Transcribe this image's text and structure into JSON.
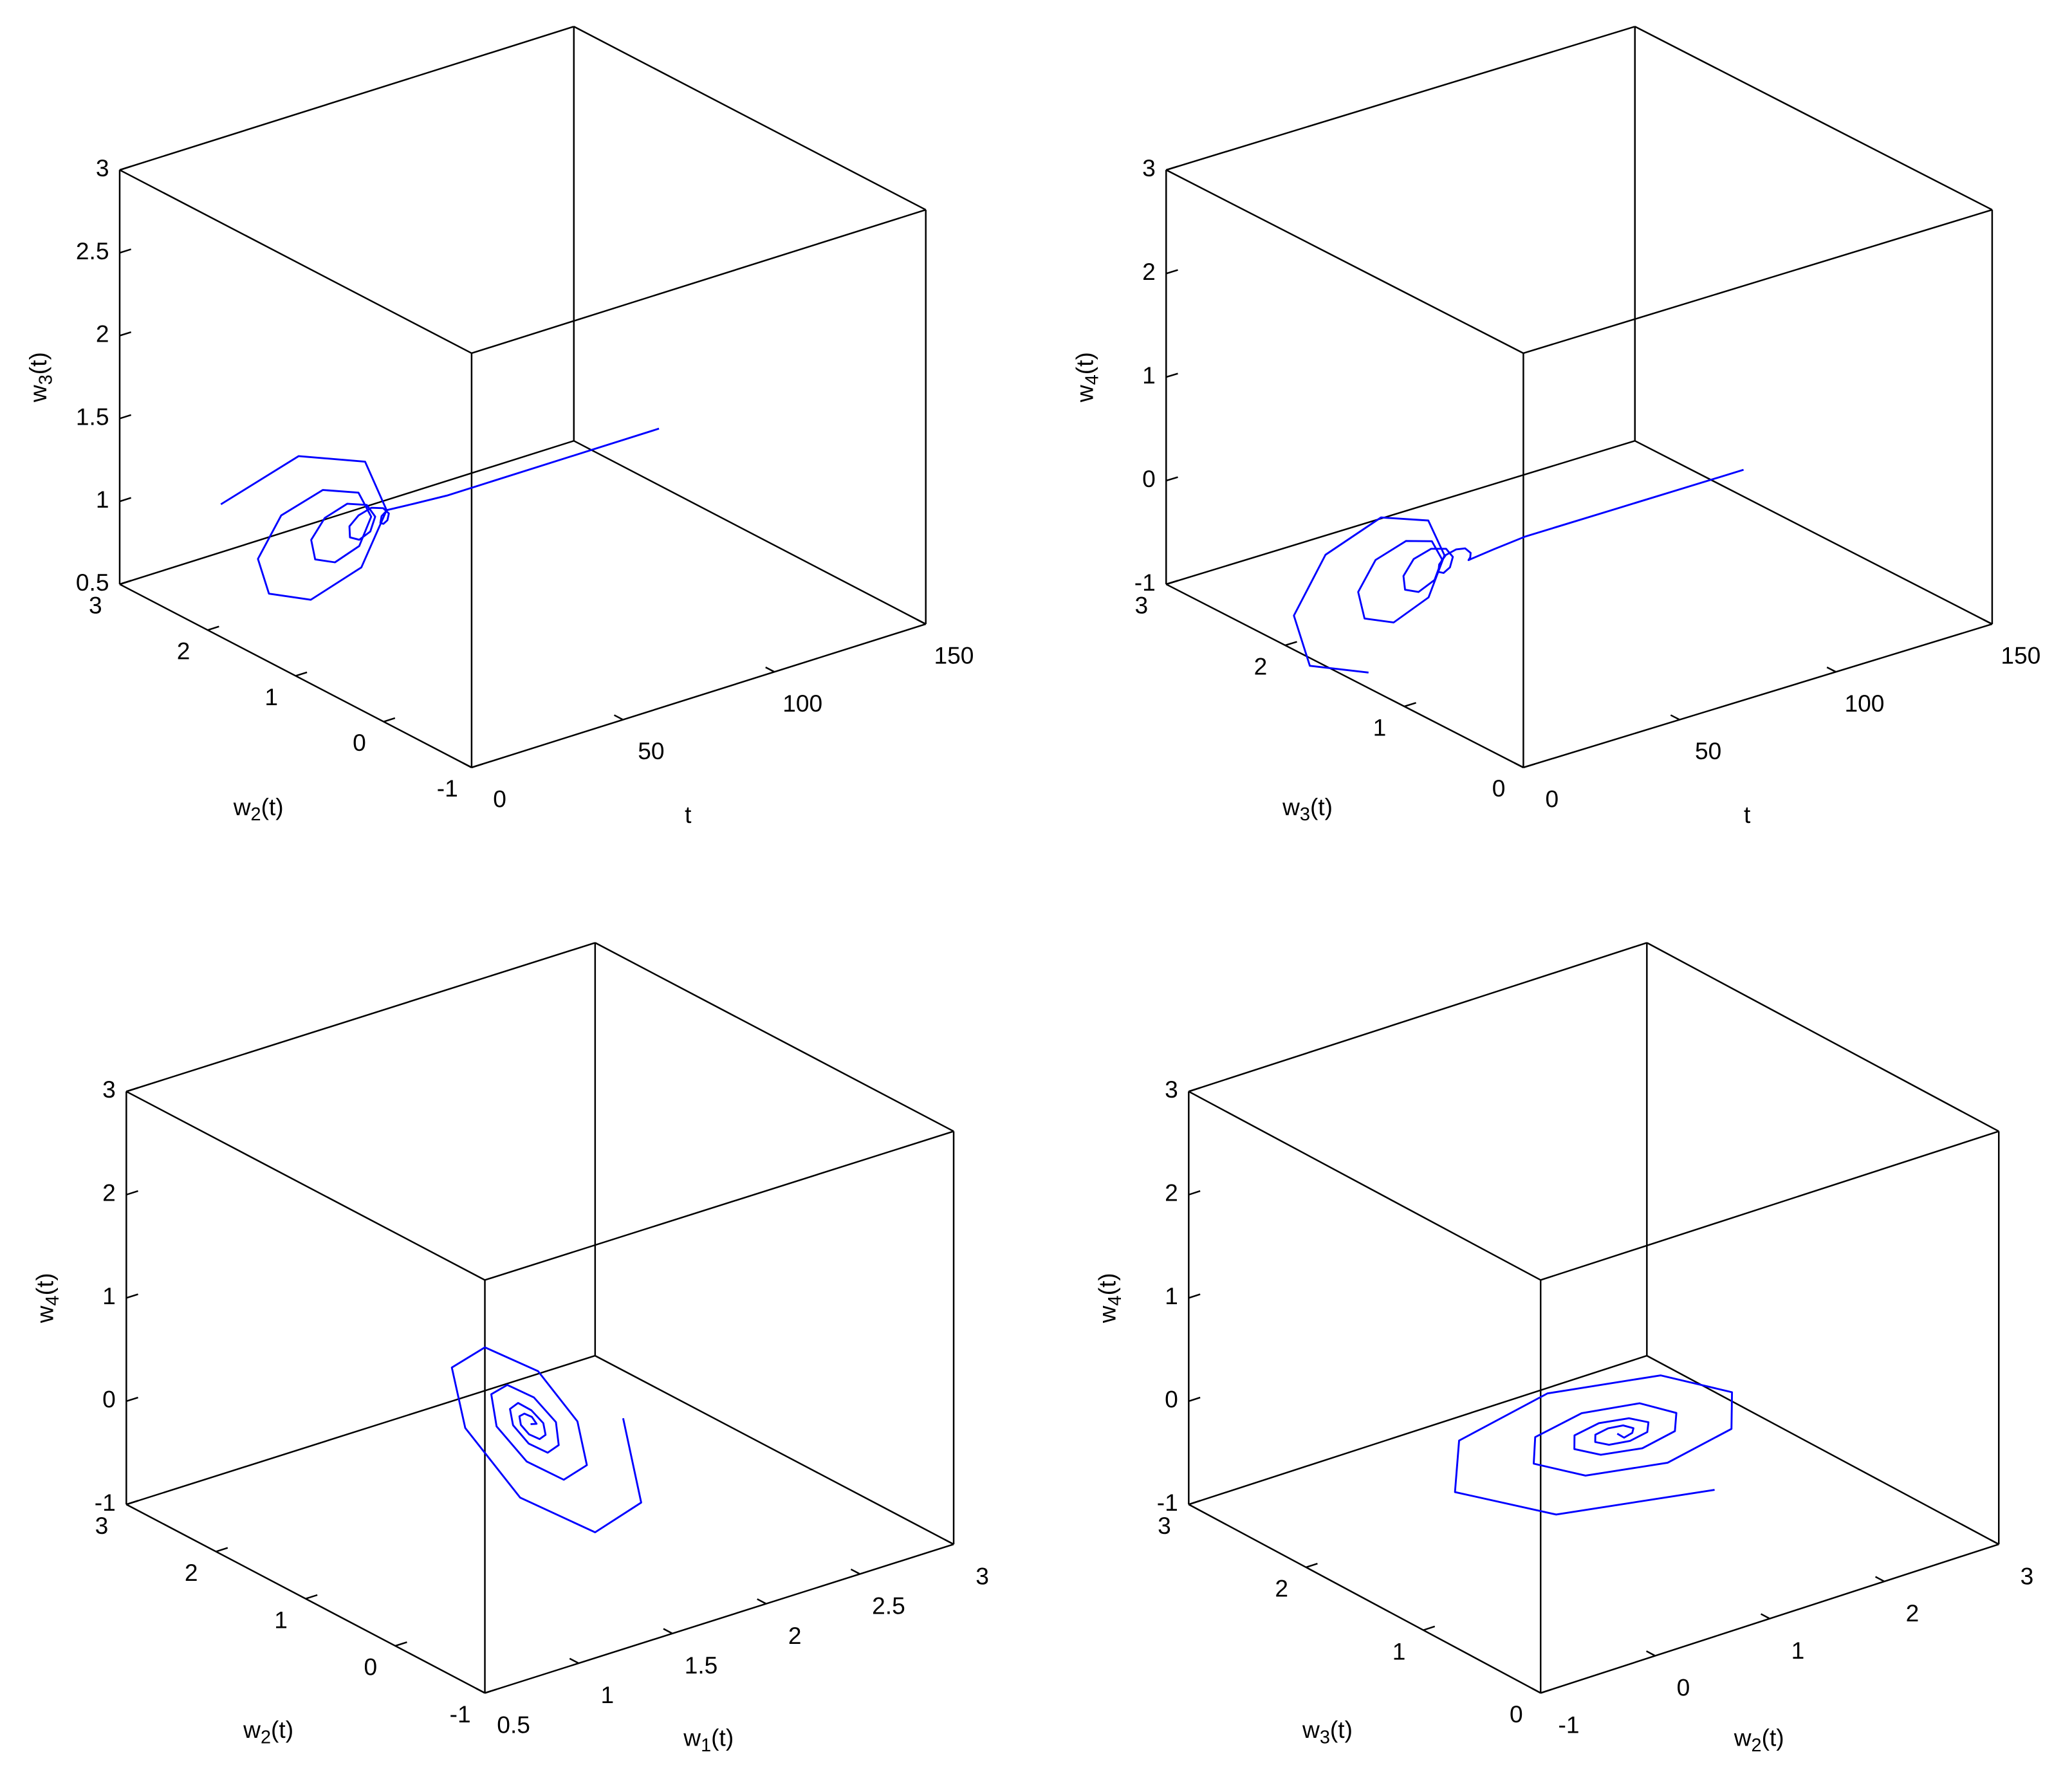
{
  "chart_data": [
    {
      "type": "line3d",
      "xlabel": "t",
      "ylabel": "w2(t)",
      "zlabel": "w3(t)",
      "xlim": [
        0,
        150
      ],
      "ylim": [
        -1,
        3
      ],
      "zlim": [
        0.5,
        3
      ],
      "xticks": [
        0,
        50,
        100,
        150
      ],
      "yticks": [
        -1,
        0,
        1,
        2,
        3
      ],
      "zticks": [
        0.5,
        1,
        1.5,
        2,
        2.5,
        3
      ],
      "series": [
        {
          "color": "#0000ff",
          "x": [
            0,
            1,
            2,
            3,
            4,
            5,
            6,
            7,
            8,
            9,
            10,
            11,
            12,
            13,
            14,
            15,
            16,
            17,
            18,
            19,
            20,
            21,
            22,
            23,
            24,
            25,
            26,
            27,
            28,
            29,
            30,
            31,
            32,
            40,
            50,
            60,
            80,
            100,
            120
          ],
          "y": [
            1.85,
            1,
            0.28,
            0.07,
            0.39,
            1,
            1.51,
            1.67,
            1.44,
            1,
            0.63,
            0.52,
            0.69,
            1,
            1.26,
            1.34,
            1.22,
            1,
            0.81,
            0.75,
            0.84,
            1,
            1.14,
            1.18,
            1.11,
            1,
            0.9,
            0.87,
            0.92,
            1,
            1.07,
            1.09,
            1.06,
            1.03,
            1,
            1,
            1,
            1,
            1
          ],
          "z": [
            1.3,
            1.82,
            1.98,
            1.74,
            1.3,
            0.93,
            0.82,
            0.98,
            1.3,
            1.57,
            1.65,
            1.53,
            1.3,
            1.11,
            1.05,
            1.14,
            1.3,
            1.44,
            1.48,
            1.42,
            1.3,
            1.2,
            1.17,
            1.22,
            1.3,
            1.37,
            1.39,
            1.36,
            1.3,
            1.25,
            1.23,
            1.26,
            1.3,
            1.3,
            1.3,
            1.3,
            1.3,
            1.3,
            1.3
          ]
        }
      ]
    },
    {
      "type": "line3d",
      "xlabel": "t",
      "ylabel": "w3(t)",
      "zlabel": "w4(t)",
      "xlim": [
        0,
        150
      ],
      "ylim": [
        0,
        3
      ],
      "zlim": [
        -1,
        3
      ],
      "xticks": [
        0,
        50,
        100,
        150
      ],
      "yticks": [
        0,
        1,
        2,
        3
      ],
      "zticks": [
        -1,
        0,
        1,
        2,
        3
      ],
      "series": [
        {
          "color": "#0000ff",
          "x": [
            0,
            1,
            2,
            3,
            4,
            5,
            6,
            7,
            8,
            9,
            10,
            11,
            12,
            13,
            14,
            15,
            16,
            17,
            18,
            19,
            20,
            21,
            22,
            23,
            24,
            25,
            26,
            27,
            28,
            29,
            30,
            31,
            32,
            40,
            50,
            60,
            80,
            100,
            120
          ],
          "y": [
            1.3,
            1.82,
            1.98,
            1.74,
            1.3,
            0.93,
            0.82,
            0.98,
            1.3,
            1.57,
            1.65,
            1.53,
            1.3,
            1.11,
            1.05,
            1.14,
            1.3,
            1.44,
            1.48,
            1.42,
            1.3,
            1.2,
            1.17,
            1.22,
            1.3,
            1.37,
            1.39,
            1.36,
            1.3,
            1.25,
            1.23,
            1.26,
            1.3,
            1.3,
            1.3,
            1.3,
            1.3,
            1.3,
            1.3
          ],
          "z": [
            -0.85,
            -1.1,
            -0.72,
            0,
            0.61,
            0.79,
            0.51,
            0,
            -0.44,
            -0.57,
            -0.37,
            0,
            0.31,
            0.41,
            0.26,
            0,
            -0.22,
            -0.29,
            -0.19,
            0,
            0.16,
            0.21,
            0.14,
            0,
            -0.11,
            -0.15,
            -0.1,
            0,
            0.08,
            0.11,
            0.07,
            0,
            -0.06,
            -0.03,
            0,
            0,
            0,
            0,
            0
          ]
        }
      ]
    },
    {
      "type": "line3d",
      "xlabel": "w1(t)",
      "ylabel": "w2(t)",
      "zlabel": "w4(t)",
      "xlim": [
        0.5,
        3
      ],
      "ylim": [
        -1,
        3
      ],
      "zlim": [
        -1,
        3
      ],
      "xticks": [
        0.5,
        1,
        1.5,
        2,
        2.5,
        3
      ],
      "yticks": [
        -1,
        0,
        1,
        2,
        3
      ],
      "zticks": [
        -1,
        0,
        1,
        2,
        3
      ],
      "series": [
        {
          "color": "#0000ff",
          "x": [
            2.6,
            2.29,
            1.7,
            1.2,
            1.06,
            1.28,
            1.7,
            2.06,
            2.16,
            2.0,
            1.7,
            1.45,
            1.37,
            1.49,
            1.7,
            1.88,
            1.94,
            1.85,
            1.7,
            1.57,
            1.53,
            1.59,
            1.7,
            1.79,
            1.82,
            1.78,
            1.7,
            1.63,
            1.61,
            1.64,
            1.7,
            1.75,
            1.76,
            1.73,
            1.7,
            1.7,
            1.7,
            1.7,
            1.7
          ],
          "y": [
            1.85,
            1,
            0.28,
            0.07,
            0.39,
            1,
            1.51,
            1.67,
            1.44,
            1,
            0.63,
            0.52,
            0.69,
            1,
            1.26,
            1.34,
            1.22,
            1,
            0.81,
            0.75,
            0.84,
            1,
            1.14,
            1.18,
            1.11,
            1,
            0.9,
            0.87,
            0.92,
            1,
            1.07,
            1.09,
            1.06,
            1.03,
            1,
            1,
            1,
            1,
            1
          ],
          "z": [
            -0.85,
            -1.1,
            -0.72,
            0,
            0.61,
            0.79,
            0.51,
            0,
            -0.44,
            -0.57,
            -0.37,
            0,
            0.31,
            0.41,
            0.26,
            0,
            -0.22,
            -0.29,
            -0.19,
            0,
            0.16,
            0.21,
            0.14,
            0,
            -0.11,
            -0.15,
            -0.1,
            0,
            0.08,
            0.11,
            0.07,
            0,
            -0.06,
            -0.03,
            0,
            0,
            0,
            0,
            0
          ]
        }
      ]
    },
    {
      "type": "line3d",
      "xlabel": "w2(t)",
      "ylabel": "w3(t)",
      "zlabel": "w4(t)",
      "xlim": [
        -1,
        3
      ],
      "ylim": [
        0,
        3
      ],
      "zlim": [
        -1,
        3
      ],
      "xticks": [
        -1,
        0,
        1,
        2,
        3
      ],
      "yticks": [
        0,
        1,
        2,
        3
      ],
      "zticks": [
        -1,
        0,
        1,
        2,
        3
      ],
      "series": [
        {
          "color": "#0000ff",
          "x": [
            1.85,
            1,
            0.28,
            0.07,
            0.39,
            1,
            1.51,
            1.67,
            1.44,
            1,
            0.63,
            0.52,
            0.69,
            1,
            1.26,
            1.34,
            1.22,
            1,
            0.81,
            0.75,
            0.84,
            1,
            1.14,
            1.18,
            1.11,
            1,
            0.9,
            0.87,
            0.92,
            1,
            1.07,
            1.09,
            1.06,
            1.03,
            1,
            1,
            1,
            1,
            1
          ],
          "y": [
            1.3,
            1.82,
            1.98,
            1.74,
            1.3,
            0.93,
            0.82,
            0.98,
            1.3,
            1.57,
            1.65,
            1.53,
            1.3,
            1.11,
            1.05,
            1.14,
            1.3,
            1.44,
            1.48,
            1.42,
            1.3,
            1.2,
            1.17,
            1.22,
            1.3,
            1.37,
            1.39,
            1.36,
            1.3,
            1.25,
            1.23,
            1.26,
            1.3,
            1.3,
            1.3,
            1.3,
            1.3,
            1.3,
            1.3
          ],
          "z": [
            -0.85,
            -1.1,
            -0.72,
            0,
            0.61,
            0.79,
            0.51,
            0,
            -0.44,
            -0.57,
            -0.37,
            0,
            0.31,
            0.41,
            0.26,
            0,
            -0.22,
            -0.29,
            -0.19,
            0,
            0.16,
            0.21,
            0.14,
            0,
            -0.11,
            -0.15,
            -0.1,
            0,
            0.08,
            0.11,
            0.07,
            0,
            -0.06,
            -0.03,
            0,
            0,
            0,
            0,
            0
          ]
        }
      ]
    }
  ]
}
